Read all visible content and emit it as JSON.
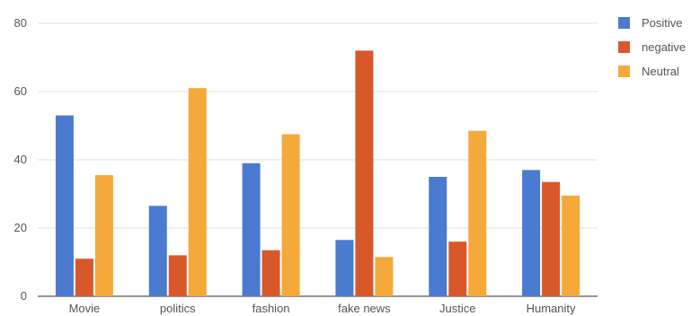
{
  "chart_data": {
    "type": "bar",
    "categories": [
      "Movie",
      "politics",
      "fashion",
      "fake news",
      "Justice",
      "Humanity"
    ],
    "series": [
      {
        "name": "Positive",
        "values": [
          53,
          26.5,
          39,
          16.5,
          35,
          37
        ],
        "color": "#4a7bd0"
      },
      {
        "name": "negative",
        "values": [
          11,
          12,
          13.5,
          72,
          16,
          33.5
        ],
        "color": "#d9582a"
      },
      {
        "name": "Neutral",
        "values": [
          35.5,
          61,
          47.5,
          11.5,
          48.5,
          29.5
        ],
        "color": "#f5a93a"
      }
    ],
    "title": "",
    "xlabel": "",
    "ylabel": "",
    "ylim": [
      0,
      80
    ],
    "yticks": [
      0,
      20,
      40,
      60,
      80
    ],
    "grid": true,
    "legend_position": "right"
  }
}
